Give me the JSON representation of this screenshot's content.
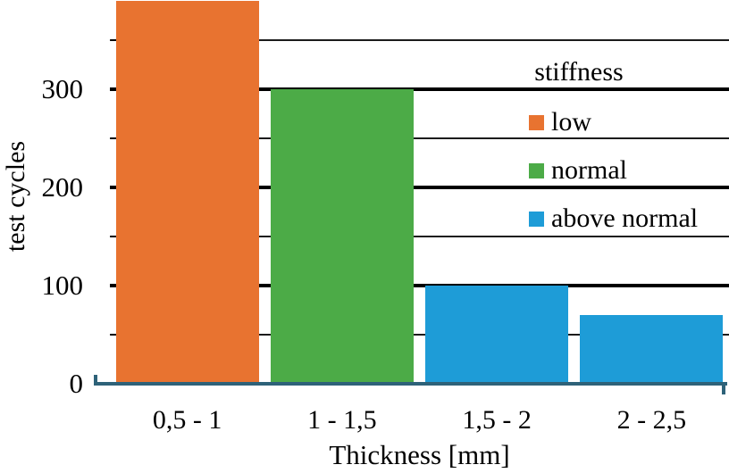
{
  "chart_data": {
    "type": "bar",
    "title": "",
    "xlabel": "Thickness [mm]",
    "ylabel": "test cycles",
    "categories": [
      "0,5 - 1",
      "1 - 1,5",
      "1,5 - 2",
      "2 - 2,5"
    ],
    "values": [
      390,
      300,
      100,
      70
    ],
    "bar_group_per_category": [
      "low",
      "normal",
      "above normal",
      "above normal"
    ],
    "ylim": [
      0,
      391
    ],
    "yticks": [
      0,
      100,
      200,
      300
    ],
    "gridlines": {
      "major": [
        100,
        200,
        300
      ],
      "minor": [
        50,
        150,
        250,
        350
      ]
    },
    "grid_on": true,
    "legend": {
      "title": "stiffness",
      "position": "upper right",
      "entries": [
        {
          "label": "low",
          "color": "#E87330"
        },
        {
          "label": "normal",
          "color": "#4CAB47"
        },
        {
          "label": "above normal",
          "color": "#1E9CD7"
        }
      ]
    },
    "colors": {
      "low": "#E87330",
      "normal": "#4CAB47",
      "above_normal": "#1E9CD7",
      "axis_line": "#2E6279",
      "gridline_major": "#000000",
      "gridline_minor": "#1b1b1b",
      "text": "#000000",
      "background": "#ffffff"
    }
  }
}
